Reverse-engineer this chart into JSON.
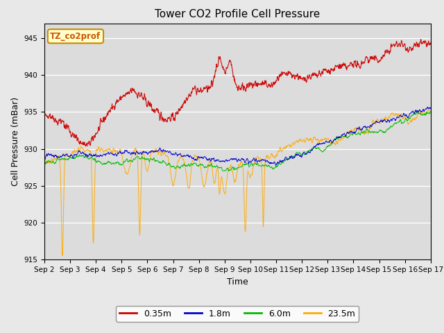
{
  "title": "Tower CO2 Profile Cell Pressure",
  "xlabel": "Time",
  "ylabel": "Cell Pressure (mBar)",
  "annotation": "TZ_co2prof",
  "ylim": [
    915,
    947
  ],
  "yticks": [
    915,
    920,
    925,
    930,
    935,
    940,
    945
  ],
  "x_labels": [
    "Sep 2",
    "Sep 3",
    "Sep 4",
    "Sep 5",
    "Sep 6",
    "Sep 7",
    "Sep 8",
    "Sep 9",
    "Sep 10",
    "Sep 11",
    "Sep 12",
    "Sep 13",
    "Sep 14",
    "Sep 15",
    "Sep 16",
    "Sep 17"
  ],
  "n_days": 15,
  "series_colors": [
    "#cc0000",
    "#0000cc",
    "#00bb00",
    "#ffaa00"
  ],
  "series_labels": [
    "0.35m",
    "1.8m",
    "6.0m",
    "23.5m"
  ],
  "fig_bg_color": "#e8e8e8",
  "plot_bg_color": "#dcdcdc",
  "title_fontsize": 11,
  "axis_label_fontsize": 9,
  "tick_fontsize": 7.5,
  "seed": 42
}
